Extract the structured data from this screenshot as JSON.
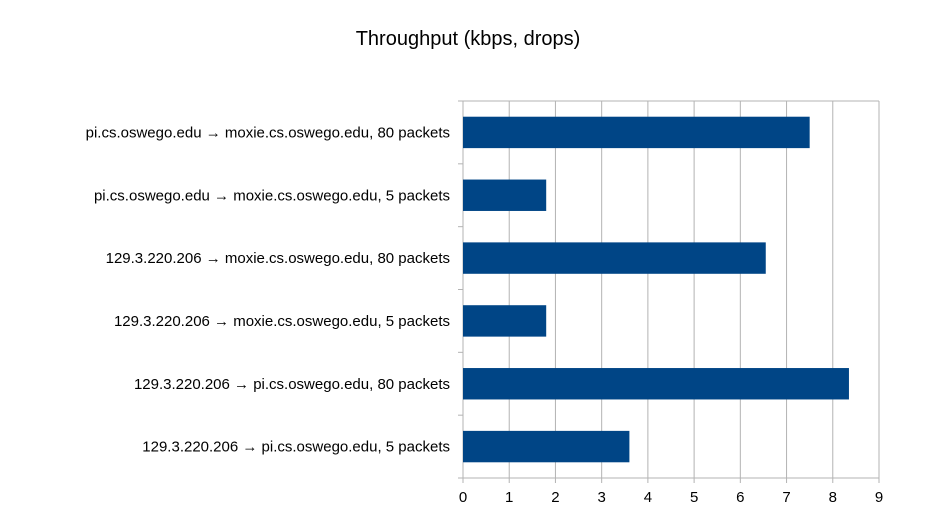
{
  "chart_data": {
    "type": "bar",
    "orientation": "horizontal",
    "title": "Throughput (kbps, drops)",
    "xlabel": "",
    "ylabel": "",
    "xlim": [
      0,
      9
    ],
    "x_ticks": [
      "0",
      "1",
      "2",
      "3",
      "4",
      "5",
      "6",
      "7",
      "8",
      "9"
    ],
    "grid": true,
    "bar_color": "#004586",
    "categories": [
      "pi.cs.oswego.edu → moxie.cs.oswego.edu, 80 packets",
      "pi.cs.oswego.edu → moxie.cs.oswego.edu, 5 packets",
      "129.3.220.206 → moxie.cs.oswego.edu, 80 packets",
      "129.3.220.206 → moxie.cs.oswego.edu, 5 packets",
      "129.3.220.206 → pi.cs.oswego.edu, 80 packets",
      "129.3.220.206 → pi.cs.oswego.edu, 5 packets"
    ],
    "values": [
      7.5,
      1.8,
      6.55,
      1.8,
      8.35,
      3.6
    ]
  }
}
